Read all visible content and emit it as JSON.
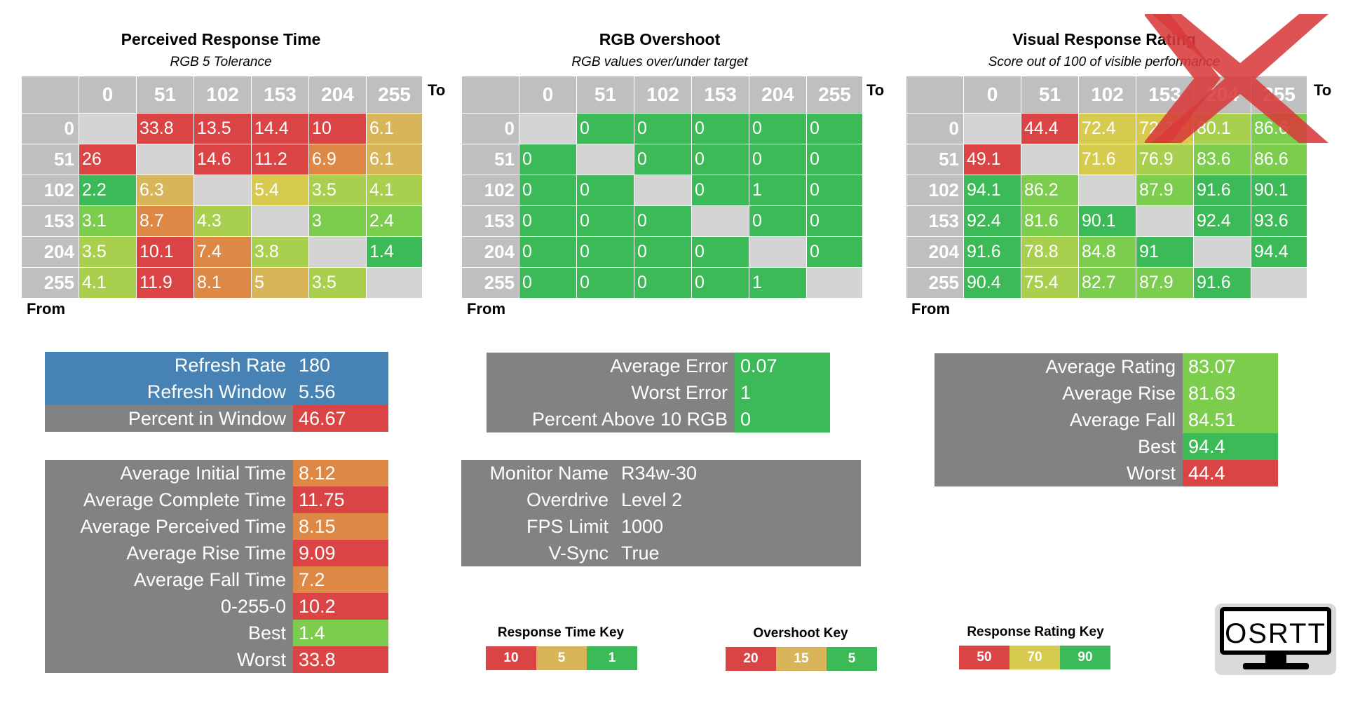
{
  "colors": {
    "header_gray": "#bfbfbf",
    "blank_cell": "#d4d4d4",
    "panel_gray": "#828282",
    "panel_blue": "#4682b4",
    "red": "#db4444",
    "orange": "#dd8845",
    "tan": "#d9b55a",
    "yellow": "#d6cb4f",
    "yellowgreen": "#a8cf4d",
    "lightgreen": "#7ccd4d",
    "green": "#3bba57",
    "x_mark": "#d83a3a"
  },
  "response_time": {
    "title": "Perceived Response Time",
    "subtitle": "RGB 5 Tolerance",
    "to_label": "To",
    "from_label": "From",
    "columns": [
      "0",
      "51",
      "102",
      "153",
      "204",
      "255"
    ],
    "rows": [
      {
        "label": "0",
        "cells": [
          "",
          "33.8",
          "13.5",
          "14.4",
          "10",
          "6.1"
        ]
      },
      {
        "label": "51",
        "cells": [
          "26",
          "",
          "14.6",
          "11.2",
          "6.9",
          "6.1"
        ]
      },
      {
        "label": "102",
        "cells": [
          "2.2",
          "6.3",
          "",
          "5.4",
          "3.5",
          "4.1"
        ]
      },
      {
        "label": "153",
        "cells": [
          "3.1",
          "8.7",
          "4.3",
          "",
          "3",
          "2.4"
        ]
      },
      {
        "label": "204",
        "cells": [
          "3.5",
          "10.1",
          "7.4",
          "3.8",
          "",
          "1.4"
        ]
      },
      {
        "label": "255",
        "cells": [
          "4.1",
          "11.9",
          "8.1",
          "5",
          "3.5",
          ""
        ]
      }
    ],
    "cell_colors": [
      [
        "blank",
        "red",
        "red",
        "red",
        "red",
        "tan"
      ],
      [
        "red",
        "blank",
        "red",
        "red",
        "orange",
        "tan"
      ],
      [
        "green",
        "tan",
        "blank",
        "yellow",
        "yellowgreen",
        "yellowgreen"
      ],
      [
        "lightgreen",
        "orange",
        "yellowgreen",
        "blank",
        "lightgreen",
        "lightgreen"
      ],
      [
        "yellowgreen",
        "red",
        "orange",
        "yellowgreen",
        "blank",
        "green"
      ],
      [
        "yellowgreen",
        "red",
        "orange",
        "tan",
        "yellowgreen",
        "blank"
      ]
    ]
  },
  "overshoot": {
    "title": "RGB Overshoot",
    "subtitle": "RGB values over/under target",
    "to_label": "To",
    "from_label": "From",
    "columns": [
      "0",
      "51",
      "102",
      "153",
      "204",
      "255"
    ],
    "rows": [
      {
        "label": "0",
        "cells": [
          "",
          "0",
          "0",
          "0",
          "0",
          "0"
        ]
      },
      {
        "label": "51",
        "cells": [
          "0",
          "",
          "0",
          "0",
          "0",
          "0"
        ]
      },
      {
        "label": "102",
        "cells": [
          "0",
          "0",
          "",
          "0",
          "1",
          "0"
        ]
      },
      {
        "label": "153",
        "cells": [
          "0",
          "0",
          "0",
          "",
          "0",
          "0"
        ]
      },
      {
        "label": "204",
        "cells": [
          "0",
          "0",
          "0",
          "0",
          "",
          "0"
        ]
      },
      {
        "label": "255",
        "cells": [
          "0",
          "0",
          "0",
          "0",
          "1",
          ""
        ]
      }
    ]
  },
  "visual_rating": {
    "title": "Visual Response Rating",
    "subtitle": "Score out of 100 of visible performance",
    "to_label": "To",
    "from_label": "From",
    "columns": [
      "0",
      "51",
      "102",
      "153",
      "204",
      "255"
    ],
    "rows": [
      {
        "label": "0",
        "cells": [
          "",
          "44.4",
          "72.4",
          "72.2",
          "80.1",
          "86.6"
        ]
      },
      {
        "label": "51",
        "cells": [
          "49.1",
          "",
          "71.6",
          "76.9",
          "83.6",
          "86.6"
        ]
      },
      {
        "label": "102",
        "cells": [
          "94.1",
          "86.2",
          "",
          "87.9",
          "91.6",
          "90.1"
        ]
      },
      {
        "label": "153",
        "cells": [
          "92.4",
          "81.6",
          "90.1",
          "",
          "92.4",
          "93.6"
        ]
      },
      {
        "label": "204",
        "cells": [
          "91.6",
          "78.8",
          "84.8",
          "91",
          "",
          "94.4"
        ]
      },
      {
        "label": "255",
        "cells": [
          "90.4",
          "75.4",
          "82.7",
          "87.9",
          "91.6",
          ""
        ]
      }
    ],
    "cell_colors": [
      [
        "blank",
        "red",
        "yellow",
        "yellow",
        "yellowgreen",
        "lightgreen"
      ],
      [
        "red",
        "blank",
        "yellow",
        "yellowgreen",
        "lightgreen",
        "lightgreen"
      ],
      [
        "green",
        "lightgreen",
        "blank",
        "lightgreen",
        "green",
        "green"
      ],
      [
        "green",
        "lightgreen",
        "green",
        "blank",
        "green",
        "green"
      ],
      [
        "green",
        "yellowgreen",
        "lightgreen",
        "green",
        "blank",
        "green"
      ],
      [
        "green",
        "yellowgreen",
        "lightgreen",
        "lightgreen",
        "green",
        "blank"
      ]
    ]
  },
  "refresh": {
    "items": [
      {
        "label": "Refresh Rate",
        "value": "180"
      },
      {
        "label": "Refresh Window",
        "value": "5.56"
      },
      {
        "label": "Percent in Window",
        "value": "46.67"
      }
    ]
  },
  "timing": {
    "items": [
      {
        "label": "Average Initial Time",
        "value": "8.12",
        "color": "orange"
      },
      {
        "label": "Average Complete Time",
        "value": "11.75",
        "color": "red"
      },
      {
        "label": "Average Perceived Time",
        "value": "8.15",
        "color": "orange"
      },
      {
        "label": "Average Rise Time",
        "value": "9.09",
        "color": "red"
      },
      {
        "label": "Average Fall Time",
        "value": "7.2",
        "color": "orange"
      },
      {
        "label": "0-255-0",
        "value": "10.2",
        "color": "red"
      },
      {
        "label": "Best",
        "value": "1.4",
        "color": "lightgreen"
      },
      {
        "label": "Worst",
        "value": "33.8",
        "color": "red"
      }
    ]
  },
  "overshoot_stats": {
    "items": [
      {
        "label": "Average Error",
        "value": "0.07"
      },
      {
        "label": "Worst Error",
        "value": "1"
      },
      {
        "label": "Percent Above 10 RGB",
        "value": "0"
      }
    ]
  },
  "monitor": {
    "items": [
      {
        "label": "Monitor Name",
        "value": "R34w-30"
      },
      {
        "label": "Overdrive",
        "value": "Level 2"
      },
      {
        "label": "FPS Limit",
        "value": "1000"
      },
      {
        "label": "V-Sync",
        "value": "True"
      }
    ]
  },
  "rating_stats": {
    "items": [
      {
        "label": "Average Rating",
        "value": "83.07",
        "color": "lightgreen"
      },
      {
        "label": "Average Rise",
        "value": "81.63",
        "color": "lightgreen"
      },
      {
        "label": "Average Fall",
        "value": "84.51",
        "color": "lightgreen"
      },
      {
        "label": "Best",
        "value": "94.4",
        "color": "green"
      },
      {
        "label": "Worst",
        "value": "44.4",
        "color": "red"
      }
    ]
  },
  "keys": {
    "response_time": {
      "title": "Response Time Key",
      "values": [
        "10",
        "5",
        "1"
      ]
    },
    "overshoot": {
      "title": "Overshoot Key",
      "values": [
        "20",
        "15",
        "5"
      ]
    },
    "rating": {
      "title": "Response Rating Key",
      "values": [
        "50",
        "70",
        "90"
      ]
    }
  },
  "logo": {
    "text": "OSRTT",
    "icon": "monitor-icon"
  }
}
